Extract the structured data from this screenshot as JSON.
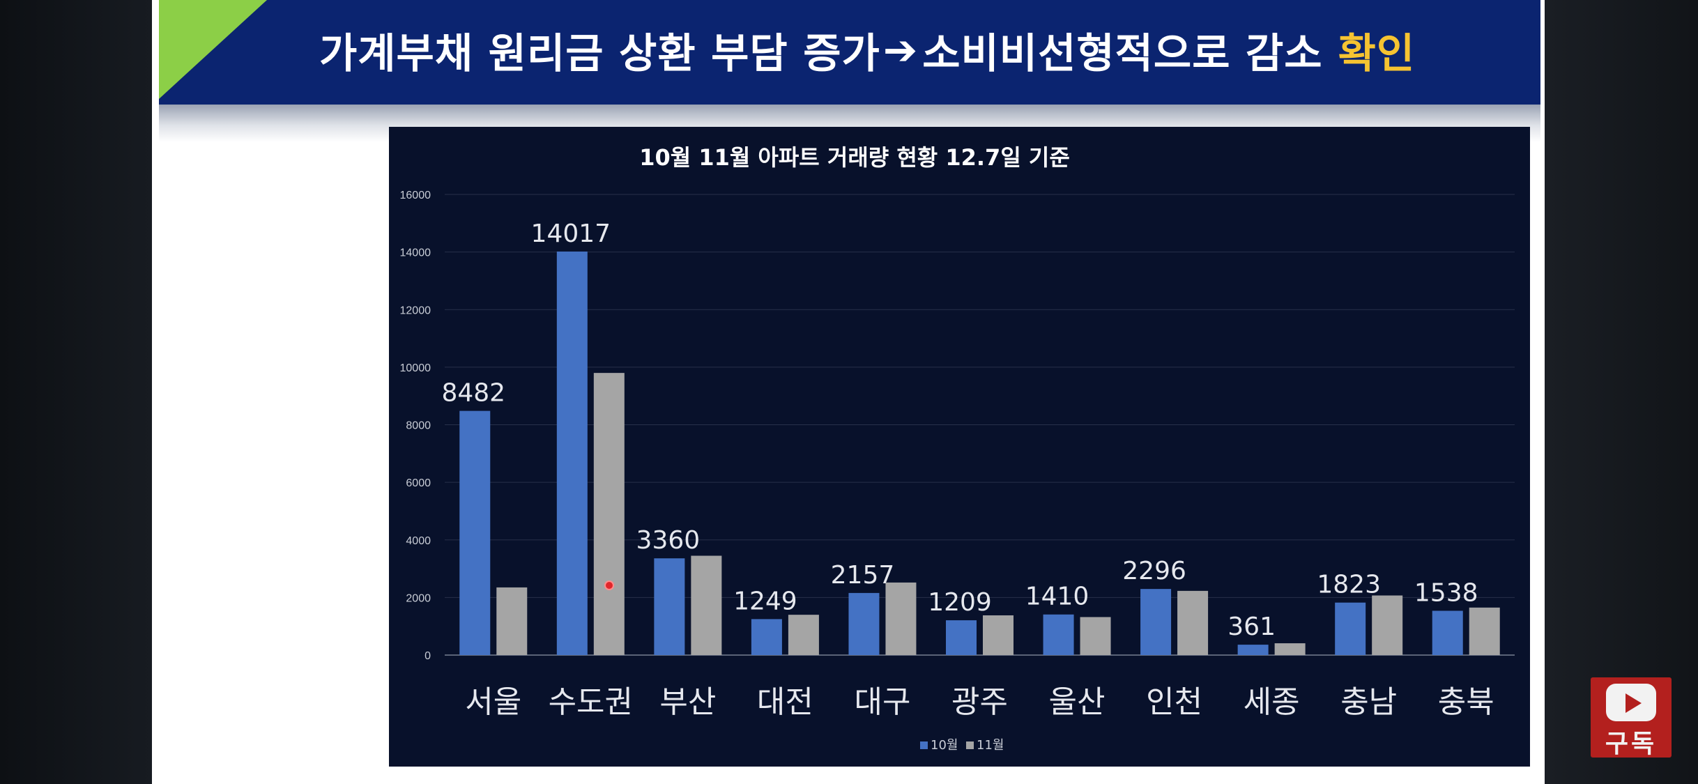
{
  "slide": {
    "title_main": "가계부채 원리금 상환 부담 증가",
    "title_arrow": "➔",
    "title_rest": "소비비선형적으로 감소",
    "title_highlight": "확인"
  },
  "colors": {
    "header_bg": "#0b2470",
    "corner_green": "#8ccf47",
    "highlight": "#f6c331",
    "chart_bg": "#08112b",
    "series_oct": "#4472c4",
    "series_nov": "#a5a5a5"
  },
  "youtube": {
    "icon": "youtube-play-icon",
    "subscribe_label": "구독"
  },
  "chart_data": {
    "type": "bar",
    "title": "10월 11월 아파트 거래량 현황  12.7일 기준",
    "categories": [
      "서울",
      "수도권",
      "부산",
      "대전",
      "대구",
      "광주",
      "울산",
      "인천",
      "세종",
      "충남",
      "충북"
    ],
    "series": [
      {
        "name": "10월",
        "color": "#4472c4",
        "values": [
          8482,
          14017,
          3360,
          1249,
          2157,
          1209,
          1410,
          2296,
          361,
          1823,
          1538
        ]
      },
      {
        "name": "11월",
        "color": "#a5a5a5",
        "values": [
          2350,
          9800,
          3450,
          1400,
          2520,
          1380,
          1320,
          2230,
          410,
          2070,
          1650
        ]
      }
    ],
    "data_labels": [
      "8482",
      "14017",
      "3360",
      "1249",
      "2157",
      "1209",
      "1410",
      "2296",
      "361",
      "1823",
      "1538"
    ],
    "ylim": [
      0,
      16000
    ],
    "yticks": [
      0,
      2000,
      4000,
      6000,
      8000,
      10000,
      12000,
      14000,
      16000
    ],
    "grid": true,
    "legend": "bottom"
  }
}
